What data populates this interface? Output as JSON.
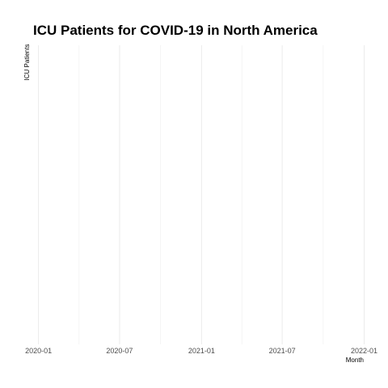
{
  "chart_data": {
    "type": "line",
    "title": "ICU Patients for COVID-19 in North America",
    "xlabel": "Month",
    "ylabel": "ICU Patients",
    "x_ticks": [
      "2020-01",
      "2020-07",
      "2021-01",
      "2021-07",
      "2022-01"
    ],
    "x_tick_dates": [
      "2020-01-01",
      "2020-07-01",
      "2021-01-01",
      "2021-07-01",
      "2022-01-01"
    ],
    "xlim": [
      "2019-12-20",
      "2022-01-20"
    ],
    "grid": true,
    "series": []
  }
}
